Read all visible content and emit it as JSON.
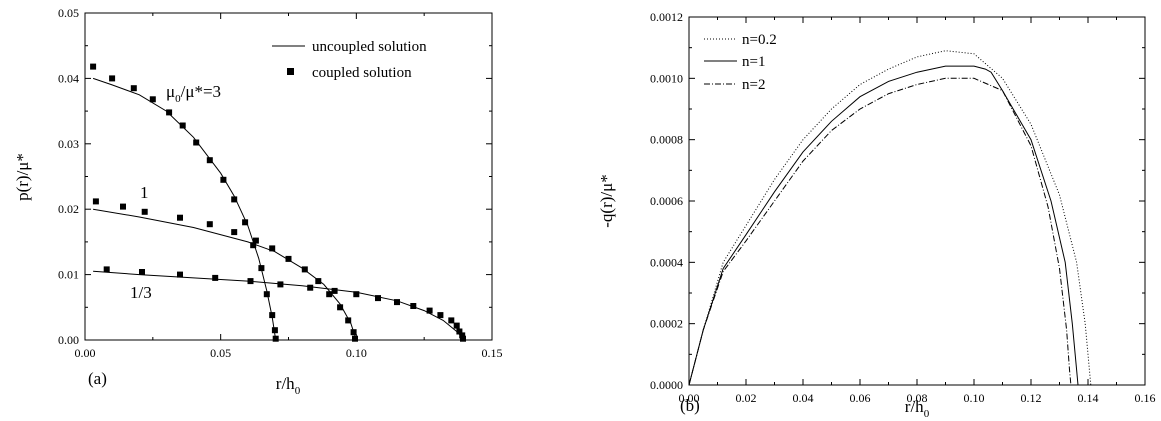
{
  "chart_data": [
    {
      "type": "line",
      "panel_label": "(a)",
      "xlabel": "r/h",
      "xlabel_sub": "0",
      "ylabel": "p(r)/μ*",
      "xlim": [
        0,
        0.15
      ],
      "ylim": [
        0,
        0.05
      ],
      "xticks": [
        "0.00",
        "0.05",
        "0.10",
        "0.15"
      ],
      "yticks": [
        "0.00",
        "0.01",
        "0.02",
        "0.03",
        "0.04",
        "0.05"
      ],
      "legend": {
        "placement": "top-right",
        "line_label": "uncoupled solution",
        "marker_label": "coupled solution"
      },
      "annotations": [
        {
          "pre": "μ",
          "sub": "0",
          "post": "/μ*=3"
        },
        {
          "text": "1"
        },
        {
          "text": "1/3"
        }
      ],
      "series": [
        {
          "uncoupled": [
            [
              0.003,
              0.04
            ],
            [
              0.01,
              0.039
            ],
            [
              0.02,
              0.0375
            ],
            [
              0.03,
              0.035
            ],
            [
              0.04,
              0.031
            ],
            [
              0.05,
              0.0255
            ],
            [
              0.055,
              0.022
            ],
            [
              0.06,
              0.0175
            ],
            [
              0.064,
              0.0125
            ],
            [
              0.067,
              0.0075
            ],
            [
              0.069,
              0.0035
            ],
            [
              0.0703,
              0.0
            ]
          ],
          "coupled": [
            [
              0.003,
              0.0418
            ],
            [
              0.01,
              0.04
            ],
            [
              0.018,
              0.0385
            ],
            [
              0.025,
              0.0368
            ],
            [
              0.031,
              0.0348
            ],
            [
              0.036,
              0.0328
            ],
            [
              0.041,
              0.0302
            ],
            [
              0.046,
              0.0275
            ],
            [
              0.051,
              0.0245
            ],
            [
              0.055,
              0.0215
            ],
            [
              0.059,
              0.018
            ],
            [
              0.062,
              0.0145
            ],
            [
              0.065,
              0.011
            ],
            [
              0.067,
              0.007
            ],
            [
              0.069,
              0.0038
            ],
            [
              0.07,
              0.0015
            ],
            [
              0.0703,
              0.0002
            ]
          ]
        },
        {
          "uncoupled": [
            [
              0.003,
              0.02
            ],
            [
              0.02,
              0.0188
            ],
            [
              0.04,
              0.0172
            ],
            [
              0.06,
              0.015
            ],
            [
              0.07,
              0.0135
            ],
            [
              0.08,
              0.011
            ],
            [
              0.088,
              0.0085
            ],
            [
              0.094,
              0.0055
            ],
            [
              0.098,
              0.0025
            ],
            [
              0.1,
              0.0
            ]
          ],
          "coupled": [
            [
              0.004,
              0.0212
            ],
            [
              0.014,
              0.0204
            ],
            [
              0.022,
              0.0196
            ],
            [
              0.035,
              0.0187
            ],
            [
              0.046,
              0.0177
            ],
            [
              0.055,
              0.0165
            ],
            [
              0.063,
              0.0152
            ],
            [
              0.069,
              0.014
            ],
            [
              0.075,
              0.0124
            ],
            [
              0.081,
              0.0108
            ],
            [
              0.086,
              0.009
            ],
            [
              0.09,
              0.007
            ],
            [
              0.094,
              0.005
            ],
            [
              0.097,
              0.003
            ],
            [
              0.099,
              0.0012
            ],
            [
              0.0995,
              0.0002
            ]
          ]
        },
        {
          "uncoupled": [
            [
              0.003,
              0.0105
            ],
            [
              0.02,
              0.01
            ],
            [
              0.04,
              0.0095
            ],
            [
              0.06,
              0.009
            ],
            [
              0.08,
              0.0083
            ],
            [
              0.1,
              0.0073
            ],
            [
              0.115,
              0.006
            ],
            [
              0.125,
              0.0045
            ],
            [
              0.132,
              0.003
            ],
            [
              0.137,
              0.0013
            ],
            [
              0.14,
              0.0
            ]
          ],
          "coupled": [
            [
              0.008,
              0.0108
            ],
            [
              0.021,
              0.0104
            ],
            [
              0.035,
              0.01
            ],
            [
              0.048,
              0.0095
            ],
            [
              0.061,
              0.009
            ],
            [
              0.072,
              0.0085
            ],
            [
              0.083,
              0.008
            ],
            [
              0.092,
              0.0075
            ],
            [
              0.1,
              0.007
            ],
            [
              0.108,
              0.0064
            ],
            [
              0.115,
              0.0058
            ],
            [
              0.121,
              0.0052
            ],
            [
              0.127,
              0.0045
            ],
            [
              0.131,
              0.0038
            ],
            [
              0.135,
              0.003
            ],
            [
              0.137,
              0.0022
            ],
            [
              0.138,
              0.0013
            ],
            [
              0.139,
              0.0007
            ],
            [
              0.1393,
              0.0002
            ]
          ]
        }
      ]
    },
    {
      "type": "line",
      "panel_label": "(b)",
      "xlabel": "r/h",
      "xlabel_sub": "0",
      "ylabel": "-q(r)/μ*",
      "xlim": [
        0,
        0.16
      ],
      "ylim": [
        0,
        0.0012
      ],
      "xticks": [
        "0.00",
        "0.02",
        "0.04",
        "0.06",
        "0.08",
        "0.10",
        "0.12",
        "0.14",
        "0.16"
      ],
      "yticks": [
        "0.0000",
        "0.0002",
        "0.0004",
        "0.0006",
        "0.0008",
        "0.0010",
        "0.0012"
      ],
      "legend": {
        "placement": "top-left"
      },
      "series": [
        {
          "name": "n=0.2",
          "dash": "dotted",
          "points": [
            [
              0,
              0
            ],
            [
              0.005,
              0.00018
            ],
            [
              0.012,
              0.0004
            ],
            [
              0.02,
              0.00052
            ],
            [
              0.03,
              0.00067
            ],
            [
              0.04,
              0.0008
            ],
            [
              0.05,
              0.0009
            ],
            [
              0.06,
              0.00098
            ],
            [
              0.07,
              0.00103
            ],
            [
              0.08,
              0.00107
            ],
            [
              0.09,
              0.00109
            ],
            [
              0.1,
              0.00108
            ],
            [
              0.11,
              0.001
            ],
            [
              0.12,
              0.00085
            ],
            [
              0.13,
              0.00062
            ],
            [
              0.136,
              0.0004
            ],
            [
              0.139,
              0.0002
            ],
            [
              0.1405,
              5e-05
            ],
            [
              0.141,
              0
            ]
          ]
        },
        {
          "name": "n=1",
          "dash": "solid",
          "points": [
            [
              0,
              0
            ],
            [
              0.005,
              0.00018
            ],
            [
              0.012,
              0.00038
            ],
            [
              0.02,
              0.00049
            ],
            [
              0.03,
              0.00063
            ],
            [
              0.04,
              0.00076
            ],
            [
              0.05,
              0.00086
            ],
            [
              0.06,
              0.00094
            ],
            [
              0.07,
              0.00099
            ],
            [
              0.08,
              0.00102
            ],
            [
              0.09,
              0.00104
            ],
            [
              0.1,
              0.00104
            ],
            [
              0.104,
              0.00103
            ],
            [
              0.106,
              0.00102
            ],
            [
              0.11,
              0.00096
            ],
            [
              0.12,
              0.0008
            ],
            [
              0.127,
              0.0006
            ],
            [
              0.132,
              0.0004
            ],
            [
              0.1345,
              0.0002
            ],
            [
              0.136,
              5e-05
            ],
            [
              0.1365,
              0
            ]
          ]
        },
        {
          "name": "n=2",
          "dash": "dashdot",
          "points": [
            [
              0,
              0
            ],
            [
              0.005,
              0.00018
            ],
            [
              0.012,
              0.00037
            ],
            [
              0.02,
              0.00047
            ],
            [
              0.03,
              0.0006
            ],
            [
              0.04,
              0.00073
            ],
            [
              0.05,
              0.00083
            ],
            [
              0.06,
              0.0009
            ],
            [
              0.07,
              0.00095
            ],
            [
              0.08,
              0.00098
            ],
            [
              0.09,
              0.001
            ],
            [
              0.1,
              0.001
            ],
            [
              0.11,
              0.00096
            ],
            [
              0.12,
              0.00078
            ],
            [
              0.126,
              0.00058
            ],
            [
              0.13,
              0.00038
            ],
            [
              0.1325,
              0.00018
            ],
            [
              0.1335,
              5e-05
            ],
            [
              0.134,
              0
            ]
          ]
        }
      ]
    }
  ]
}
